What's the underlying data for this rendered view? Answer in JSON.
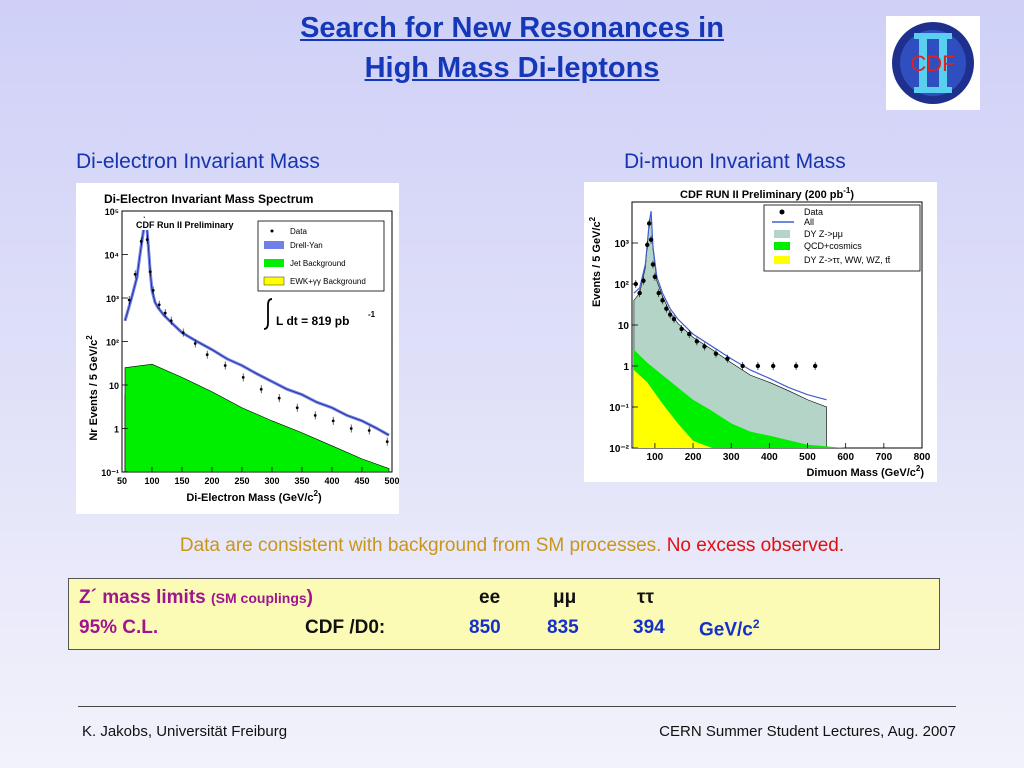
{
  "slide": {
    "title_line1": "Search for New Resonances in",
    "title_line2": "High Mass Di-leptons",
    "left_heading": "Di-electron Invariant Mass",
    "right_heading": "Di-muon Invariant Mass",
    "logo_text": "CDF",
    "message_main": "Data are consistent with background from SM processes.",
    "message_highlight": "No excess observed."
  },
  "limits": {
    "label": "Z´ mass limits",
    "sublabel": "(SM couplings",
    "sublabel_close": ")",
    "col_ee": "ee",
    "col_mumu": "μμ",
    "col_tautau": "ττ",
    "cl_label": "95% C.L.",
    "expt_label": "CDF /D0:",
    "val_ee": "850",
    "val_mumu": "835",
    "val_tautau": "394",
    "unit": "GeV/c",
    "unit_sup": "2"
  },
  "footer": {
    "left": "K. Jakobs,  Universität Freiburg",
    "right": "CERN Summer Student Lectures,  Aug. 2007"
  },
  "colors": {
    "title": "#1438b8",
    "drell_yan": "#7080e8",
    "jet_background": "#00ee00",
    "ewk_background": "#ffff00",
    "dy_mumu_fill": "#b4d4c8"
  },
  "chart_data": [
    {
      "type": "histogram",
      "title": "Di-Electron Invariant Mass Spectrum",
      "subtitle": "CDF Run II Preliminary",
      "xlabel": "Di-Electron Mass (GeV/c",
      "xlabel_sup": "2",
      "xlabel_close": ")",
      "ylabel": "Nr Events / 5 GeV/c",
      "ylabel_sup": "2",
      "xlim": [
        50,
        500
      ],
      "ylim": [
        0.1,
        100000
      ],
      "log_y": true,
      "x_ticks": [
        "50",
        "100",
        "150",
        "200",
        "250",
        "300",
        "350",
        "400",
        "450",
        "500"
      ],
      "y_ticks": [
        "10⁻¹",
        "1",
        "10",
        "10²",
        "10³",
        "10⁴",
        "10⁵"
      ],
      "annotation": "L dt = 819 pb",
      "annotation_sup": "-1",
      "legend_position": "top-right",
      "series": [
        {
          "name": "Data",
          "x": [
            62,
            72,
            82,
            87,
            92,
            97,
            102,
            112,
            122,
            132,
            152,
            172,
            192,
            222,
            252,
            282,
            312,
            342,
            372,
            402,
            432,
            462,
            492
          ],
          "values": [
            900,
            3500,
            20000,
            60000,
            22000,
            4000,
            1500,
            700,
            450,
            300,
            160,
            90,
            50,
            28,
            15,
            8,
            5,
            3,
            2,
            1.5,
            1,
            0.9,
            0.5
          ]
        },
        {
          "name": "Drell-Yan",
          "x": [
            55,
            65,
            75,
            80,
            85,
            88,
            91,
            94,
            97,
            100,
            105,
            110,
            120,
            135,
            150,
            175,
            200,
            225,
            250,
            275,
            300,
            325,
            350,
            375,
            400,
            425,
            450,
            475,
            495
          ],
          "values": [
            300,
            900,
            3000,
            10000,
            30000,
            60000,
            50000,
            15000,
            4000,
            1500,
            800,
            600,
            400,
            250,
            160,
            100,
            65,
            40,
            28,
            18,
            12,
            8,
            6,
            4,
            3,
            2,
            1.5,
            1,
            0.7
          ]
        },
        {
          "name": "Jet Background",
          "x": [
            55,
            100,
            150,
            200,
            250,
            300,
            350,
            400,
            450,
            495
          ],
          "values": [
            25,
            30,
            15,
            7,
            3,
            1.5,
            0.8,
            0.4,
            0.2,
            0.12
          ]
        },
        {
          "name": "EWK+γγ Background",
          "x": [
            55,
            100,
            150,
            200,
            250,
            300,
            350,
            400,
            450,
            495
          ],
          "values": [
            6,
            10,
            4,
            1.5,
            0.6,
            0.3,
            0.18,
            0.13,
            0.11,
            0.1
          ]
        }
      ]
    },
    {
      "type": "histogram",
      "title": "CDF RUN II Preliminary (200 pb",
      "title_sup": "-1",
      "title_close": ")",
      "xlabel": "Dimuon Mass (GeV/c",
      "xlabel_sup": "2",
      "xlabel_close": ")",
      "ylabel": "Events / 5 GeV/c",
      "ylabel_sup": "2",
      "xlim": [
        40,
        800
      ],
      "ylim": [
        0.01,
        10000
      ],
      "log_y": true,
      "x_ticks": [
        "100",
        "200",
        "300",
        "400",
        "500",
        "600",
        "700",
        "800"
      ],
      "y_ticks": [
        "10⁻²",
        "10⁻¹",
        "1",
        "10",
        "10²",
        "10³"
      ],
      "legend_position": "top-right",
      "series": [
        {
          "name": "Data",
          "x": [
            50,
            60,
            70,
            80,
            85,
            90,
            95,
            100,
            110,
            120,
            130,
            140,
            150,
            170,
            190,
            210,
            230,
            260,
            290,
            330,
            370,
            410,
            470,
            520
          ],
          "values": [
            100,
            60,
            120,
            900,
            3000,
            1200,
            300,
            150,
            60,
            40,
            25,
            18,
            14,
            8,
            6,
            4,
            3,
            2,
            1.5,
            1,
            1,
            1,
            1,
            1
          ]
        },
        {
          "name": "All",
          "x": [
            45,
            60,
            75,
            85,
            90,
            95,
            105,
            120,
            140,
            160,
            200,
            250,
            300,
            350,
            400,
            450,
            500,
            550
          ],
          "values": [
            60,
            80,
            300,
            3000,
            6000,
            800,
            150,
            60,
            25,
            14,
            6,
            3,
            1.5,
            0.8,
            0.5,
            0.3,
            0.2,
            0.15
          ]
        },
        {
          "name": "DY Z->μμ",
          "x": [
            45,
            60,
            75,
            85,
            90,
            95,
            105,
            120,
            140,
            160,
            200,
            250,
            300,
            350,
            400,
            450,
            500,
            550
          ],
          "values": [
            40,
            60,
            250,
            2800,
            5500,
            700,
            120,
            50,
            20,
            11,
            5,
            2.5,
            1.2,
            0.6,
            0.4,
            0.25,
            0.15,
            0.1
          ]
        },
        {
          "name": "QCD+cosmics",
          "x": [
            45,
            80,
            120,
            160,
            200,
            250,
            300,
            350,
            400,
            500,
            600,
            700,
            790
          ],
          "values": [
            2.5,
            1.2,
            0.6,
            0.3,
            0.15,
            0.08,
            0.04,
            0.025,
            0.02,
            0.012,
            0.01,
            0.01,
            0.01
          ]
        },
        {
          "name": "DY Z->ττ, WW, WZ, tt̄",
          "x": [
            45,
            80,
            120,
            160,
            200,
            250
          ],
          "values": [
            0.8,
            0.4,
            0.12,
            0.04,
            0.015,
            0.01
          ]
        }
      ]
    }
  ]
}
